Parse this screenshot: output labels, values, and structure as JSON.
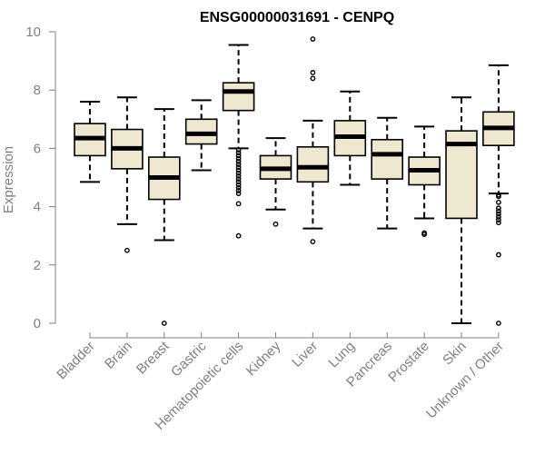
{
  "chart_data": {
    "type": "boxplot",
    "title": "ENSG00000031691 - CENPQ",
    "ylabel": "Expression",
    "xlabel": "",
    "ylim": [
      0,
      10
    ],
    "yticks": [
      0,
      2,
      4,
      6,
      8,
      10
    ],
    "grid": false,
    "box_fill": "#eee8d0",
    "box_stroke": "#000000",
    "categories": [
      "Bladder",
      "Brain",
      "Breast",
      "Gastric",
      "Hematopoietic cells",
      "Kidney",
      "Liver",
      "Lung",
      "Pancreas",
      "Prostate",
      "Skin",
      "Unknown / Other"
    ],
    "boxes": [
      {
        "category": "Bladder",
        "whisker_low": 4.85,
        "q1": 5.75,
        "median": 6.35,
        "q3": 6.85,
        "whisker_high": 7.6,
        "outliers": []
      },
      {
        "category": "Brain",
        "whisker_low": 3.4,
        "q1": 5.3,
        "median": 6.0,
        "q3": 6.65,
        "whisker_high": 7.75,
        "outliers": [
          2.5
        ]
      },
      {
        "category": "Breast",
        "whisker_low": 2.85,
        "q1": 4.25,
        "median": 5.0,
        "q3": 5.7,
        "whisker_high": 7.35,
        "outliers": [
          0.0
        ]
      },
      {
        "category": "Gastric",
        "whisker_low": 5.25,
        "q1": 6.15,
        "median": 6.5,
        "q3": 7.0,
        "whisker_high": 7.65,
        "outliers": []
      },
      {
        "category": "Hematopoietic cells",
        "whisker_low": 6.0,
        "q1": 7.3,
        "median": 7.95,
        "q3": 8.25,
        "whisker_high": 9.55,
        "outliers": [
          5.95,
          5.85,
          5.75,
          5.65,
          5.55,
          5.45,
          5.35,
          5.25,
          5.15,
          5.05,
          4.95,
          4.85,
          4.75,
          4.65,
          4.55,
          4.45,
          4.1,
          3.0
        ]
      },
      {
        "category": "Kidney",
        "whisker_low": 3.9,
        "q1": 4.95,
        "median": 5.3,
        "q3": 5.75,
        "whisker_high": 6.35,
        "outliers": [
          3.4
        ]
      },
      {
        "category": "Liver",
        "whisker_low": 3.25,
        "q1": 4.85,
        "median": 5.35,
        "q3": 6.05,
        "whisker_high": 6.95,
        "outliers": [
          9.75,
          8.6,
          8.4,
          2.8
        ]
      },
      {
        "category": "Lung",
        "whisker_low": 4.75,
        "q1": 5.75,
        "median": 6.4,
        "q3": 6.95,
        "whisker_high": 7.95,
        "outliers": []
      },
      {
        "category": "Pancreas",
        "whisker_low": 3.25,
        "q1": 4.95,
        "median": 5.8,
        "q3": 6.3,
        "whisker_high": 7.05,
        "outliers": []
      },
      {
        "category": "Prostate",
        "whisker_low": 3.6,
        "q1": 4.75,
        "median": 5.25,
        "q3": 5.7,
        "whisker_high": 6.75,
        "outliers": [
          3.1,
          3.05
        ]
      },
      {
        "category": "Skin",
        "whisker_low": 0.0,
        "q1": 3.6,
        "median": 6.15,
        "q3": 6.6,
        "whisker_high": 7.75,
        "outliers": []
      },
      {
        "category": "Unknown / Other",
        "whisker_low": 4.45,
        "q1": 6.1,
        "median": 6.7,
        "q3": 7.25,
        "whisker_high": 8.85,
        "outliers": [
          4.4,
          4.35,
          4.15,
          3.95,
          3.85,
          3.75,
          3.65,
          3.55,
          3.45,
          2.35,
          0.0
        ]
      }
    ]
  }
}
